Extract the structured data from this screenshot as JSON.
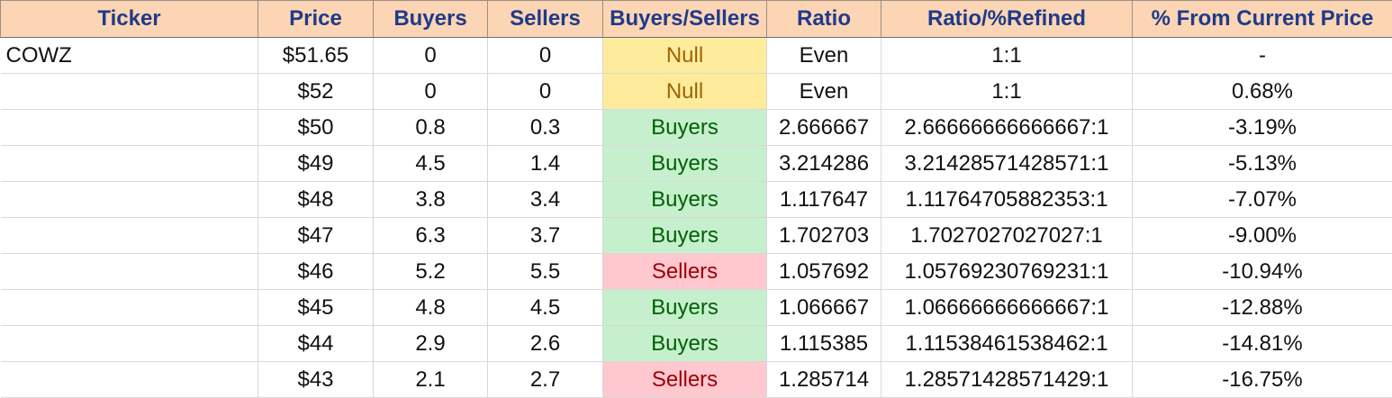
{
  "colors": {
    "header_bg": "#fcd5b4",
    "header_text": "#1f3a8a",
    "null_bg": "#ffeb9c",
    "null_text": "#9c6500",
    "buyers_bg": "#c6efce",
    "buyers_text": "#006100",
    "sellers_bg": "#ffc7ce",
    "sellers_text": "#9c0006"
  },
  "headers": [
    "Ticker",
    "Price",
    "Buyers",
    "Sellers",
    "Buyers/Sellers",
    "Ratio",
    "Ratio/%Refined",
    "% From Current Price"
  ],
  "rows": [
    {
      "ticker": "COWZ",
      "price": "$51.65",
      "buyers": "0",
      "sellers": "0",
      "side": "Null",
      "ratio": "Even",
      "refined": "1:1",
      "pct": "-"
    },
    {
      "ticker": "",
      "price": "$52",
      "buyers": "0",
      "sellers": "0",
      "side": "Null",
      "ratio": "Even",
      "refined": "1:1",
      "pct": "0.68%"
    },
    {
      "ticker": "",
      "price": "$50",
      "buyers": "0.8",
      "sellers": "0.3",
      "side": "Buyers",
      "ratio": "2.666667",
      "refined": "2.66666666666667:1",
      "pct": "-3.19%"
    },
    {
      "ticker": "",
      "price": "$49",
      "buyers": "4.5",
      "sellers": "1.4",
      "side": "Buyers",
      "ratio": "3.214286",
      "refined": "3.21428571428571:1",
      "pct": "-5.13%"
    },
    {
      "ticker": "",
      "price": "$48",
      "buyers": "3.8",
      "sellers": "3.4",
      "side": "Buyers",
      "ratio": "1.117647",
      "refined": "1.11764705882353:1",
      "pct": "-7.07%"
    },
    {
      "ticker": "",
      "price": "$47",
      "buyers": "6.3",
      "sellers": "3.7",
      "side": "Buyers",
      "ratio": "1.702703",
      "refined": "1.7027027027027:1",
      "pct": "-9.00%"
    },
    {
      "ticker": "",
      "price": "$46",
      "buyers": "5.2",
      "sellers": "5.5",
      "side": "Sellers",
      "ratio": "1.057692",
      "refined": "1.05769230769231:1",
      "pct": "-10.94%"
    },
    {
      "ticker": "",
      "price": "$45",
      "buyers": "4.8",
      "sellers": "4.5",
      "side": "Buyers",
      "ratio": "1.066667",
      "refined": "1.06666666666667:1",
      "pct": "-12.88%"
    },
    {
      "ticker": "",
      "price": "$44",
      "buyers": "2.9",
      "sellers": "2.6",
      "side": "Buyers",
      "ratio": "1.115385",
      "refined": "1.11538461538462:1",
      "pct": "-14.81%"
    },
    {
      "ticker": "",
      "price": "$43",
      "buyers": "2.1",
      "sellers": "2.7",
      "side": "Sellers",
      "ratio": "1.285714",
      "refined": "1.28571428571429:1",
      "pct": "-16.75%"
    }
  ]
}
